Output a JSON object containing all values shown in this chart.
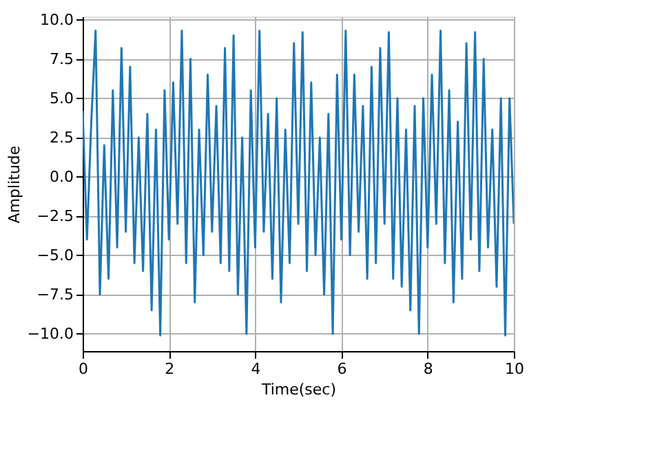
{
  "chart_data": {
    "type": "line",
    "xlabel": "Time(sec)",
    "ylabel": "Amplitude",
    "xlim": [
      0,
      10
    ],
    "xticks": [
      0,
      2,
      4,
      6,
      8,
      10
    ],
    "ylim": [
      -11.1,
      10.2
    ],
    "yticks": [
      {
        "value": -10,
        "label": "−10.0"
      },
      {
        "value": -7.5,
        "label": "−7.5"
      },
      {
        "value": -5,
        "label": "−5.0"
      },
      {
        "value": -2.5,
        "label": "−2.5"
      },
      {
        "value": 0,
        "label": "0.0"
      },
      {
        "value": 2.5,
        "label": "2.5"
      },
      {
        "value": 5,
        "label": "5.0"
      },
      {
        "value": 7.5,
        "label": "7.5"
      },
      {
        "value": 10,
        "label": "10.0"
      }
    ],
    "grid": true,
    "line_style": "solid",
    "x": [
      0.0,
      0.1,
      0.2,
      0.3,
      0.4,
      0.5,
      0.6,
      0.7,
      0.8,
      0.9,
      1.0,
      1.1,
      1.2,
      1.3,
      1.4,
      1.5,
      1.6,
      1.7,
      1.8,
      1.9,
      2.0,
      2.1,
      2.2,
      2.3,
      2.4,
      2.5,
      2.6,
      2.7,
      2.8,
      2.9,
      3.0,
      3.1,
      3.2,
      3.3,
      3.4,
      3.5,
      3.6,
      3.7,
      3.8,
      3.9,
      4.0,
      4.1,
      4.2,
      4.3,
      4.4,
      4.5,
      4.6,
      4.7,
      4.8,
      4.9,
      5.0,
      5.1,
      5.2,
      5.3,
      5.4,
      5.5,
      5.6,
      5.7,
      5.8,
      5.9,
      6.0,
      6.1,
      6.2,
      6.3,
      6.4,
      6.5,
      6.6,
      6.7,
      6.8,
      6.9,
      7.0,
      7.1,
      7.2,
      7.3,
      7.4,
      7.5,
      7.6,
      7.7,
      7.8,
      7.9,
      8.0,
      8.1,
      8.2,
      8.3,
      8.4,
      8.5,
      8.6,
      8.7,
      8.8,
      8.9,
      9.0,
      9.1,
      9.2,
      9.3,
      9.4,
      9.5,
      9.6,
      9.7,
      9.8,
      9.9,
      10.0
    ],
    "series": [
      {
        "color": "#1f77b4",
        "values": [
          4.2,
          -4.0,
          3.5,
          9.3,
          -7.5,
          2.0,
          -6.5,
          5.5,
          -4.5,
          8.2,
          -3.5,
          7.0,
          -5.5,
          2.5,
          -6.0,
          4.0,
          -8.5,
          3.0,
          -10.1,
          5.5,
          -4.0,
          6.0,
          -3.0,
          9.3,
          -5.5,
          7.5,
          -8.0,
          3.0,
          -5.0,
          6.5,
          -3.5,
          4.5,
          -5.5,
          8.2,
          -6.0,
          9.0,
          -7.5,
          2.5,
          -10.0,
          5.5,
          -4.5,
          9.3,
          -3.5,
          4.0,
          -6.5,
          5.0,
          -8.0,
          3.0,
          -5.5,
          8.5,
          -3.0,
          9.2,
          -6.0,
          6.0,
          -5.0,
          2.5,
          -7.5,
          4.0,
          -10.0,
          6.5,
          -4.0,
          9.3,
          -5.0,
          6.5,
          -3.5,
          4.5,
          -6.5,
          7.0,
          -5.5,
          8.2,
          -3.0,
          9.2,
          -6.5,
          5.0,
          -7.0,
          3.0,
          -8.5,
          4.5,
          -10.0,
          5.0,
          -4.5,
          6.5,
          -3.0,
          9.3,
          -5.5,
          5.5,
          -8.0,
          3.5,
          -6.5,
          8.5,
          -4.0,
          9.2,
          -6.0,
          7.5,
          -4.5,
          3.0,
          -7.0,
          5.0,
          -10.1,
          5.0,
          -3.0
        ]
      }
    ]
  }
}
